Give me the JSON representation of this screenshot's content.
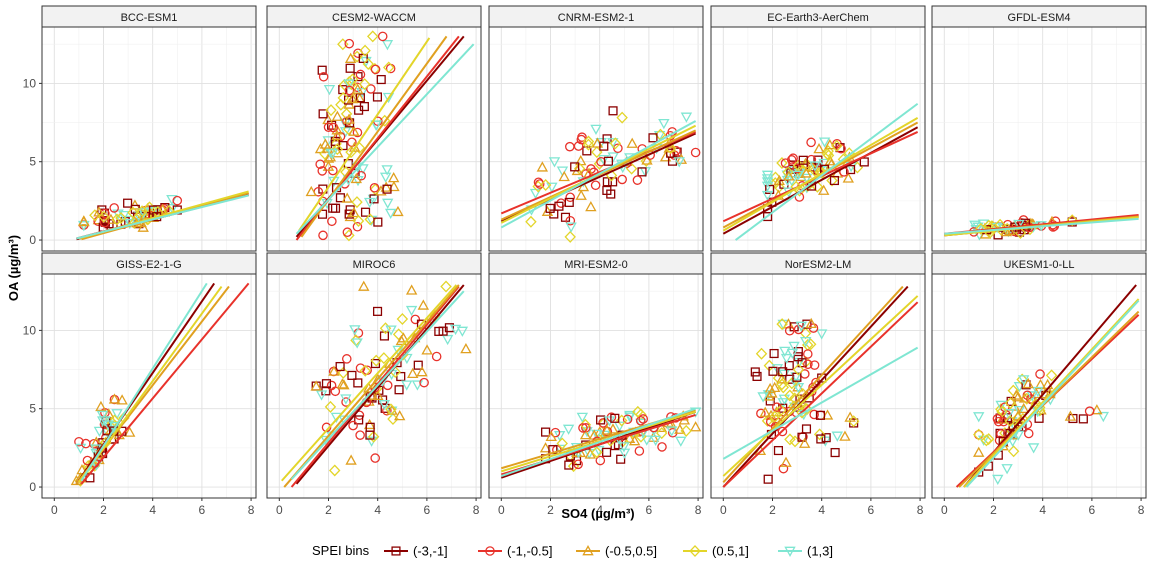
{
  "chart_data": {
    "type": "scatter",
    "facet_layout": "grid-2x5",
    "xlabel": "SO4 (µg/m³)",
    "ylabel": "OA (µg/m³)",
    "xlim": [
      -0.5,
      8.2
    ],
    "ylim": [
      -0.7,
      13.6
    ],
    "x_ticks": [
      0,
      2,
      4,
      6,
      8
    ],
    "y_ticks": [
      0,
      5,
      10
    ],
    "grid": true,
    "legend": {
      "title": "SPEI bins",
      "placement": "bottom",
      "entries": [
        {
          "label": "(-3,-1]",
          "color": "#8b0000",
          "marker": "square"
        },
        {
          "label": "(-1,-0.5]",
          "color": "#e8322b",
          "marker": "circle"
        },
        {
          "label": "(-0.5,0.5]",
          "color": "#e0a020",
          "marker": "triangle-up"
        },
        {
          "label": "(0.5,1]",
          "color": "#e3d52a",
          "marker": "diamond"
        },
        {
          "label": "(1,3]",
          "color": "#7fe6d2",
          "marker": "triangle-down"
        }
      ]
    },
    "panels": [
      {
        "title": "BCC-ESM1",
        "clusters": [
          {
            "cx": 2.8,
            "cy": 1.5,
            "sx": 1.1,
            "sy": 0.4,
            "rho": 0.5,
            "xmin": 1.2,
            "xmax": 4.8,
            "ymin": 0.3,
            "ymax": 2.6,
            "n": 55
          },
          {
            "cx": 4.0,
            "cy": 1.8,
            "sx": 0.6,
            "sy": 0.35,
            "rho": 0.4,
            "xmin": 3.0,
            "xmax": 5.0,
            "ymin": 0.8,
            "ymax": 2.6,
            "n": 20
          }
        ],
        "fits": [
          {
            "x": [
              0.9,
              7.9
            ],
            "y": [
              0.05,
              2.9
            ]
          },
          {
            "x": [
              0.9,
              7.9
            ],
            "y": [
              0.1,
              3.0
            ]
          },
          {
            "x": [
              1.1,
              7.9
            ],
            "y": [
              0.05,
              3.0
            ]
          },
          {
            "x": [
              1.0,
              7.9
            ],
            "y": [
              0.1,
              3.1
            ]
          },
          {
            "x": [
              0.9,
              7.9
            ],
            "y": [
              0.1,
              2.85
            ]
          }
        ]
      },
      {
        "title": "CESM2-WACCM",
        "clusters": [
          {
            "cx": 2.3,
            "cy": 6.5,
            "sx": 0.45,
            "sy": 2.8,
            "rho": 0.2,
            "xmin": 1.3,
            "xmax": 3.2,
            "ymin": 0.3,
            "ymax": 12.5,
            "n": 70
          },
          {
            "cx": 3.6,
            "cy": 9.5,
            "sx": 0.55,
            "sy": 2.2,
            "rho": 0.1,
            "xmin": 2.6,
            "xmax": 4.9,
            "ymin": 4.5,
            "ymax": 13.0,
            "n": 45
          },
          {
            "cx": 3.8,
            "cy": 3.0,
            "sx": 0.7,
            "sy": 1.5,
            "rho": 0.2,
            "xmin": 2.5,
            "xmax": 5.4,
            "ymin": 0.5,
            "ymax": 6.0,
            "n": 30
          }
        ],
        "fits": [
          {
            "x": [
              0.7,
              7.5
            ],
            "y": [
              0.2,
              13.0
            ]
          },
          {
            "x": [
              0.7,
              7.3
            ],
            "y": [
              0.0,
              13.0
            ]
          },
          {
            "x": [
              0.9,
              6.8
            ],
            "y": [
              0.2,
              13.0
            ]
          },
          {
            "x": [
              0.8,
              6.1
            ],
            "y": [
              0.6,
              12.9
            ]
          },
          {
            "x": [
              0.7,
              7.9
            ],
            "y": [
              0.4,
              12.5
            ]
          }
        ]
      },
      {
        "title": "CNRM-ESM2-1",
        "clusters": [
          {
            "cx": 3.5,
            "cy": 4.2,
            "sx": 1.2,
            "sy": 1.8,
            "rho": 0.4,
            "xmin": 1.2,
            "xmax": 7.9,
            "ymin": 0.2,
            "ymax": 8.6,
            "n": 70
          },
          {
            "cx": 6.5,
            "cy": 5.6,
            "sx": 0.8,
            "sy": 1.0,
            "rho": 0.2,
            "xmin": 4.5,
            "xmax": 7.9,
            "ymin": 3.0,
            "ymax": 8.0,
            "n": 30
          }
        ],
        "fits": [
          {
            "x": [
              0.0,
              7.9
            ],
            "y": [
              1.2,
              6.8
            ]
          },
          {
            "x": [
              0.0,
              7.9
            ],
            "y": [
              1.7,
              6.9
            ]
          },
          {
            "x": [
              0.0,
              7.9
            ],
            "y": [
              1.3,
              7.0
            ]
          },
          {
            "x": [
              0.0,
              7.9
            ],
            "y": [
              1.1,
              7.3
            ]
          },
          {
            "x": [
              0.0,
              7.9
            ],
            "y": [
              0.8,
              7.6
            ]
          }
        ]
      },
      {
        "title": "EC-Earth3-AerChem",
        "clusters": [
          {
            "cx": 3.0,
            "cy": 4.3,
            "sx": 0.8,
            "sy": 1.0,
            "rho": 0.5,
            "xmin": 1.8,
            "xmax": 5.5,
            "ymin": 1.5,
            "ymax": 6.5,
            "n": 65
          },
          {
            "cx": 4.5,
            "cy": 5.2,
            "sx": 0.6,
            "sy": 0.6,
            "rho": 0.2,
            "xmin": 3.5,
            "xmax": 5.9,
            "ymin": 3.8,
            "ymax": 6.3,
            "n": 25
          }
        ],
        "fits": [
          {
            "x": [
              0.0,
              7.9
            ],
            "y": [
              0.4,
              7.2
            ]
          },
          {
            "x": [
              0.0,
              7.9
            ],
            "y": [
              1.2,
              6.9
            ]
          },
          {
            "x": [
              0.0,
              7.9
            ],
            "y": [
              0.8,
              7.5
            ]
          },
          {
            "x": [
              0.0,
              7.9
            ],
            "y": [
              0.6,
              7.8
            ]
          },
          {
            "x": [
              0.5,
              7.9
            ],
            "y": [
              0.0,
              8.7
            ]
          }
        ]
      },
      {
        "title": "GFDL-ESM4",
        "clusters": [
          {
            "cx": 2.8,
            "cy": 0.8,
            "sx": 1.0,
            "sy": 0.22,
            "rho": 0.4,
            "xmin": 1.2,
            "xmax": 5.2,
            "ymin": 0.2,
            "ymax": 1.4,
            "n": 60
          }
        ],
        "fits": [
          {
            "x": [
              0.0,
              7.9
            ],
            "y": [
              0.3,
              1.5
            ]
          },
          {
            "x": [
              0.0,
              7.9
            ],
            "y": [
              0.4,
              1.6
            ]
          },
          {
            "x": [
              0.0,
              7.9
            ],
            "y": [
              0.35,
              1.5
            ]
          },
          {
            "x": [
              0.0,
              7.9
            ],
            "y": [
              0.3,
              1.45
            ]
          },
          {
            "x": [
              0.0,
              7.9
            ],
            "y": [
              0.4,
              1.35
            ]
          }
        ]
      },
      {
        "title": "GISS-E2-1-G",
        "clusters": [
          {
            "cx": 2.0,
            "cy": 3.0,
            "sx": 0.5,
            "sy": 1.3,
            "rho": 0.7,
            "xmin": 0.9,
            "xmax": 3.4,
            "ymin": 0.4,
            "ymax": 7.0,
            "n": 65
          }
        ],
        "fits": [
          {
            "x": [
              0.9,
              6.5
            ],
            "y": [
              0.2,
              13.0
            ]
          },
          {
            "x": [
              1.1,
              7.9
            ],
            "y": [
              0.2,
              13.0
            ]
          },
          {
            "x": [
              0.9,
              7.1
            ],
            "y": [
              0.2,
              12.8
            ]
          },
          {
            "x": [
              1.0,
              6.8
            ],
            "y": [
              0.3,
              12.8
            ]
          },
          {
            "x": [
              1.1,
              6.2
            ],
            "y": [
              0.4,
              13.0
            ]
          }
        ]
      },
      {
        "title": "MIROC6",
        "clusters": [
          {
            "cx": 3.7,
            "cy": 6.5,
            "sx": 1.1,
            "sy": 2.5,
            "rho": 0.35,
            "xmin": 1.5,
            "xmax": 7.8,
            "ymin": 0.6,
            "ymax": 12.8,
            "n": 80
          },
          {
            "cx": 5.8,
            "cy": 9.2,
            "sx": 0.8,
            "sy": 1.6,
            "rho": 0.2,
            "xmin": 4.2,
            "xmax": 7.9,
            "ymin": 5.5,
            "ymax": 12.8,
            "n": 30
          }
        ],
        "fits": [
          {
            "x": [
              0.7,
              7.5
            ],
            "y": [
              0.2,
              12.9
            ]
          },
          {
            "x": [
              0.5,
              7.3
            ],
            "y": [
              0.0,
              12.8
            ]
          },
          {
            "x": [
              0.2,
              7.3
            ],
            "y": [
              0.0,
              12.9
            ]
          },
          {
            "x": [
              0.1,
              7.2
            ],
            "y": [
              0.4,
              12.9
            ]
          },
          {
            "x": [
              0.5,
              7.5
            ],
            "y": [
              0.5,
              12.5
            ]
          }
        ]
      },
      {
        "title": "MRI-ESM2-0",
        "clusters": [
          {
            "cx": 5.0,
            "cy": 3.4,
            "sx": 1.5,
            "sy": 0.7,
            "rho": 0.2,
            "xmin": 1.8,
            "xmax": 7.9,
            "ymin": 1.2,
            "ymax": 4.8,
            "n": 75
          },
          {
            "cx": 3.0,
            "cy": 2.2,
            "sx": 0.7,
            "sy": 0.6,
            "rho": 0.3,
            "xmin": 1.8,
            "xmax": 4.5,
            "ymin": 1.0,
            "ymax": 4.0,
            "n": 25
          }
        ],
        "fits": [
          {
            "x": [
              0.0,
              7.9
            ],
            "y": [
              0.6,
              4.8
            ]
          },
          {
            "x": [
              0.0,
              7.9
            ],
            "y": [
              0.8,
              4.6
            ]
          },
          {
            "x": [
              0.0,
              7.9
            ],
            "y": [
              1.2,
              4.9
            ]
          },
          {
            "x": [
              0.0,
              7.9
            ],
            "y": [
              1.0,
              4.8
            ]
          },
          {
            "x": [
              0.0,
              7.9
            ],
            "y": [
              0.7,
              5.0
            ]
          }
        ]
      },
      {
        "title": "NorESM2-LM",
        "clusters": [
          {
            "cx": 2.3,
            "cy": 5.5,
            "sx": 0.5,
            "sy": 2.4,
            "rho": 0.15,
            "xmin": 1.3,
            "xmax": 3.4,
            "ymin": 0.5,
            "ymax": 10.4,
            "n": 70
          },
          {
            "cx": 3.3,
            "cy": 8.0,
            "sx": 0.35,
            "sy": 2.0,
            "rho": 0.0,
            "xmin": 2.7,
            "xmax": 4.0,
            "ymin": 3.0,
            "ymax": 11.0,
            "n": 30
          },
          {
            "cx": 4.2,
            "cy": 3.8,
            "sx": 0.6,
            "sy": 0.8,
            "rho": 0.1,
            "xmin": 3.2,
            "xmax": 5.3,
            "ymin": 2.2,
            "ymax": 5.8,
            "n": 20
          }
        ],
        "fits": [
          {
            "x": [
              0.0,
              7.5
            ],
            "y": [
              0.0,
              12.8
            ]
          },
          {
            "x": [
              0.0,
              7.9
            ],
            "y": [
              0.0,
              11.8
            ]
          },
          {
            "x": [
              0.0,
              7.3
            ],
            "y": [
              0.3,
              12.8
            ]
          },
          {
            "x": [
              0.0,
              7.9
            ],
            "y": [
              0.7,
              12.2
            ]
          },
          {
            "x": [
              0.0,
              7.9
            ],
            "y": [
              1.8,
              8.9
            ]
          }
        ]
      },
      {
        "title": "UKESM1-0-LL",
        "clusters": [
          {
            "cx": 2.6,
            "cy": 4.0,
            "sx": 0.6,
            "sy": 1.4,
            "rho": 0.5,
            "xmin": 1.4,
            "xmax": 4.6,
            "ymin": 0.5,
            "ymax": 7.6,
            "n": 65
          },
          {
            "cx": 3.8,
            "cy": 6.0,
            "sx": 0.5,
            "sy": 0.8,
            "rho": 0.3,
            "xmin": 3.0,
            "xmax": 5.2,
            "ymin": 4.0,
            "ymax": 7.6,
            "n": 25
          },
          {
            "cx": 5.8,
            "cy": 4.6,
            "sx": 0.6,
            "sy": 0.2,
            "rho": 0.0,
            "xmin": 5.0,
            "xmax": 6.9,
            "ymin": 4.2,
            "ymax": 5.0,
            "n": 6
          }
        ],
        "fits": [
          {
            "x": [
              0.8,
              7.8
            ],
            "y": [
              0.0,
              12.9
            ]
          },
          {
            "x": [
              0.5,
              7.9
            ],
            "y": [
              0.0,
              11.0
            ]
          },
          {
            "x": [
              0.6,
              7.9
            ],
            "y": [
              0.0,
              11.2
            ]
          },
          {
            "x": [
              0.8,
              7.9
            ],
            "y": [
              0.0,
              12.0
            ]
          },
          {
            "x": [
              0.9,
              7.9
            ],
            "y": [
              0.0,
              11.9
            ]
          }
        ]
      }
    ]
  }
}
